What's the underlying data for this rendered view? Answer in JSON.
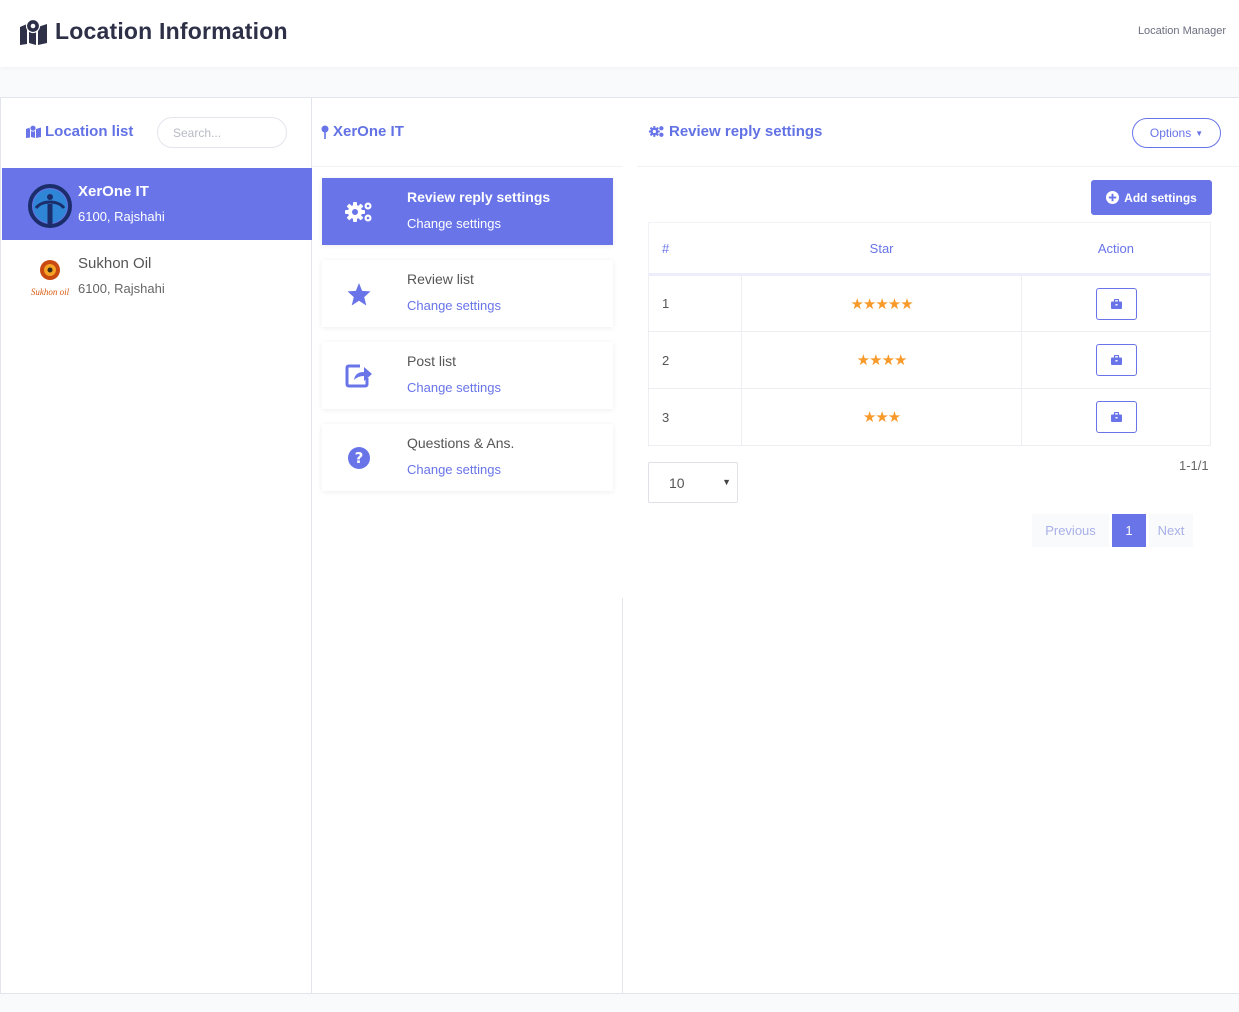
{
  "header": {
    "title": "Location Information",
    "breadcrumb": "Location Manager"
  },
  "location_list": {
    "title": "Location list",
    "search_placeholder": "Search...",
    "items": [
      {
        "name": "XerOne IT",
        "address": "6100, Rajshahi",
        "active": true
      },
      {
        "name": "Sukhon Oil",
        "address": "6100, Rajshahi",
        "active": false,
        "logo_text": "Sukhon oil"
      }
    ]
  },
  "selected_location": {
    "title": "XerOne IT",
    "menu": [
      {
        "title": "Review reply settings",
        "subtitle": "Change settings",
        "icon": "cogs-icon",
        "active": true
      },
      {
        "title": "Review list",
        "subtitle": "Change settings",
        "icon": "star-icon",
        "active": false
      },
      {
        "title": "Post list",
        "subtitle": "Change settings",
        "icon": "share-icon",
        "active": false
      },
      {
        "title": "Questions & Ans.",
        "subtitle": "Change settings",
        "icon": "question-icon",
        "active": false
      }
    ]
  },
  "settings": {
    "title": "Review reply settings",
    "options_label": "Options",
    "add_label": "Add settings",
    "table": {
      "headers": [
        "#",
        "Star",
        "Action"
      ],
      "rows": [
        {
          "num": "1",
          "stars": "★★★★★"
        },
        {
          "num": "2",
          "stars": "★★★★"
        },
        {
          "num": "3",
          "stars": "★★★"
        }
      ]
    },
    "range": "1-1/1",
    "page_size": "10",
    "pagination": {
      "prev": "Previous",
      "current": "1",
      "next": "Next"
    }
  },
  "colors": {
    "accent": "#6874e8",
    "star": "#f79a2a",
    "heading": "#2d3047"
  }
}
